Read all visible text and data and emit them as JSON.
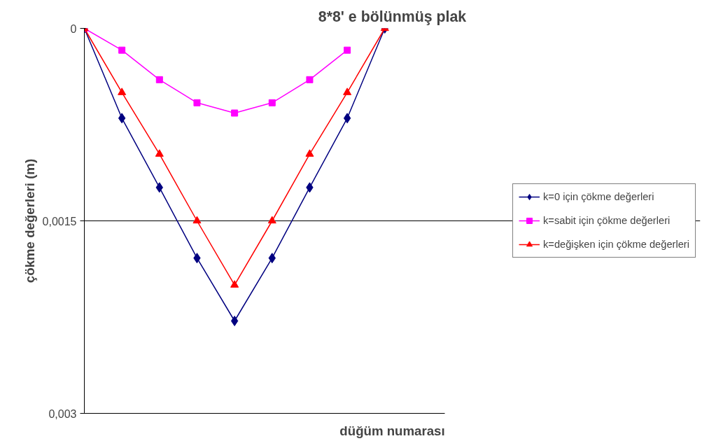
{
  "chart_data": {
    "type": "line",
    "title": "8*8' e bölünmüş plak",
    "xlabel": "düğüm numarası",
    "ylabel": "çökme değerleri (m)",
    "categories": [
      null,
      null,
      null,
      null,
      null,
      null,
      null,
      null,
      null
    ],
    "series": [
      {
        "name": "k=0 için çökme değerleri",
        "color": "#000080",
        "marker": "diamond",
        "values": [
          0,
          0.0007,
          0.00124,
          0.00179,
          0.00228,
          0.00179,
          0.00124,
          0.0007,
          0
        ]
      },
      {
        "name": "k=sabit için çökme değerleri",
        "color": "#ff00ff",
        "marker": "square",
        "values": [
          0,
          0.00017,
          0.0004,
          0.00058,
          0.00066,
          0.00058,
          0.0004,
          0.00017,
          null
        ]
      },
      {
        "name": "k=değişken için çökme değerleri",
        "color": "#ff0000",
        "marker": "triangle",
        "values": [
          0,
          0.0005,
          0.00098,
          0.0015,
          0.002,
          0.0015,
          0.00098,
          0.0005,
          0
        ]
      }
    ],
    "ylim": [
      0.003,
      0
    ],
    "yticks": [
      {
        "value": 0,
        "label": "0"
      },
      {
        "value": 0.0015,
        "label": "0,0015"
      },
      {
        "value": 0.003,
        "label": "0,003"
      }
    ],
    "grid": "y",
    "legend": "right",
    "line_style": "solid"
  }
}
